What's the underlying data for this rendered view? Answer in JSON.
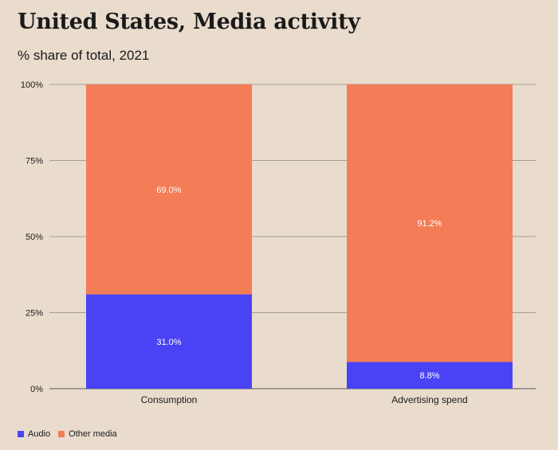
{
  "chart_data": {
    "type": "bar",
    "stacked": true,
    "title": "United States, Media activity",
    "subtitle": "% share of total, 2021",
    "categories": [
      "Consumption",
      "Advertising spend"
    ],
    "series": [
      {
        "name": "Audio",
        "color": "#4a43f5",
        "values": [
          31.0,
          8.8
        ],
        "labels": [
          "31.0%",
          "8.8%"
        ]
      },
      {
        "name": "Other media",
        "color": "#f47c56",
        "values": [
          69.0,
          91.2
        ],
        "labels": [
          "69.0%",
          "91.2%"
        ]
      }
    ],
    "ylim": [
      0,
      100
    ],
    "yticks": [
      0,
      25,
      50,
      75,
      100
    ],
    "ytick_labels": [
      "0%",
      "25%",
      "50%",
      "75%",
      "100%"
    ],
    "grid": true,
    "legend_position": "bottom-left"
  }
}
